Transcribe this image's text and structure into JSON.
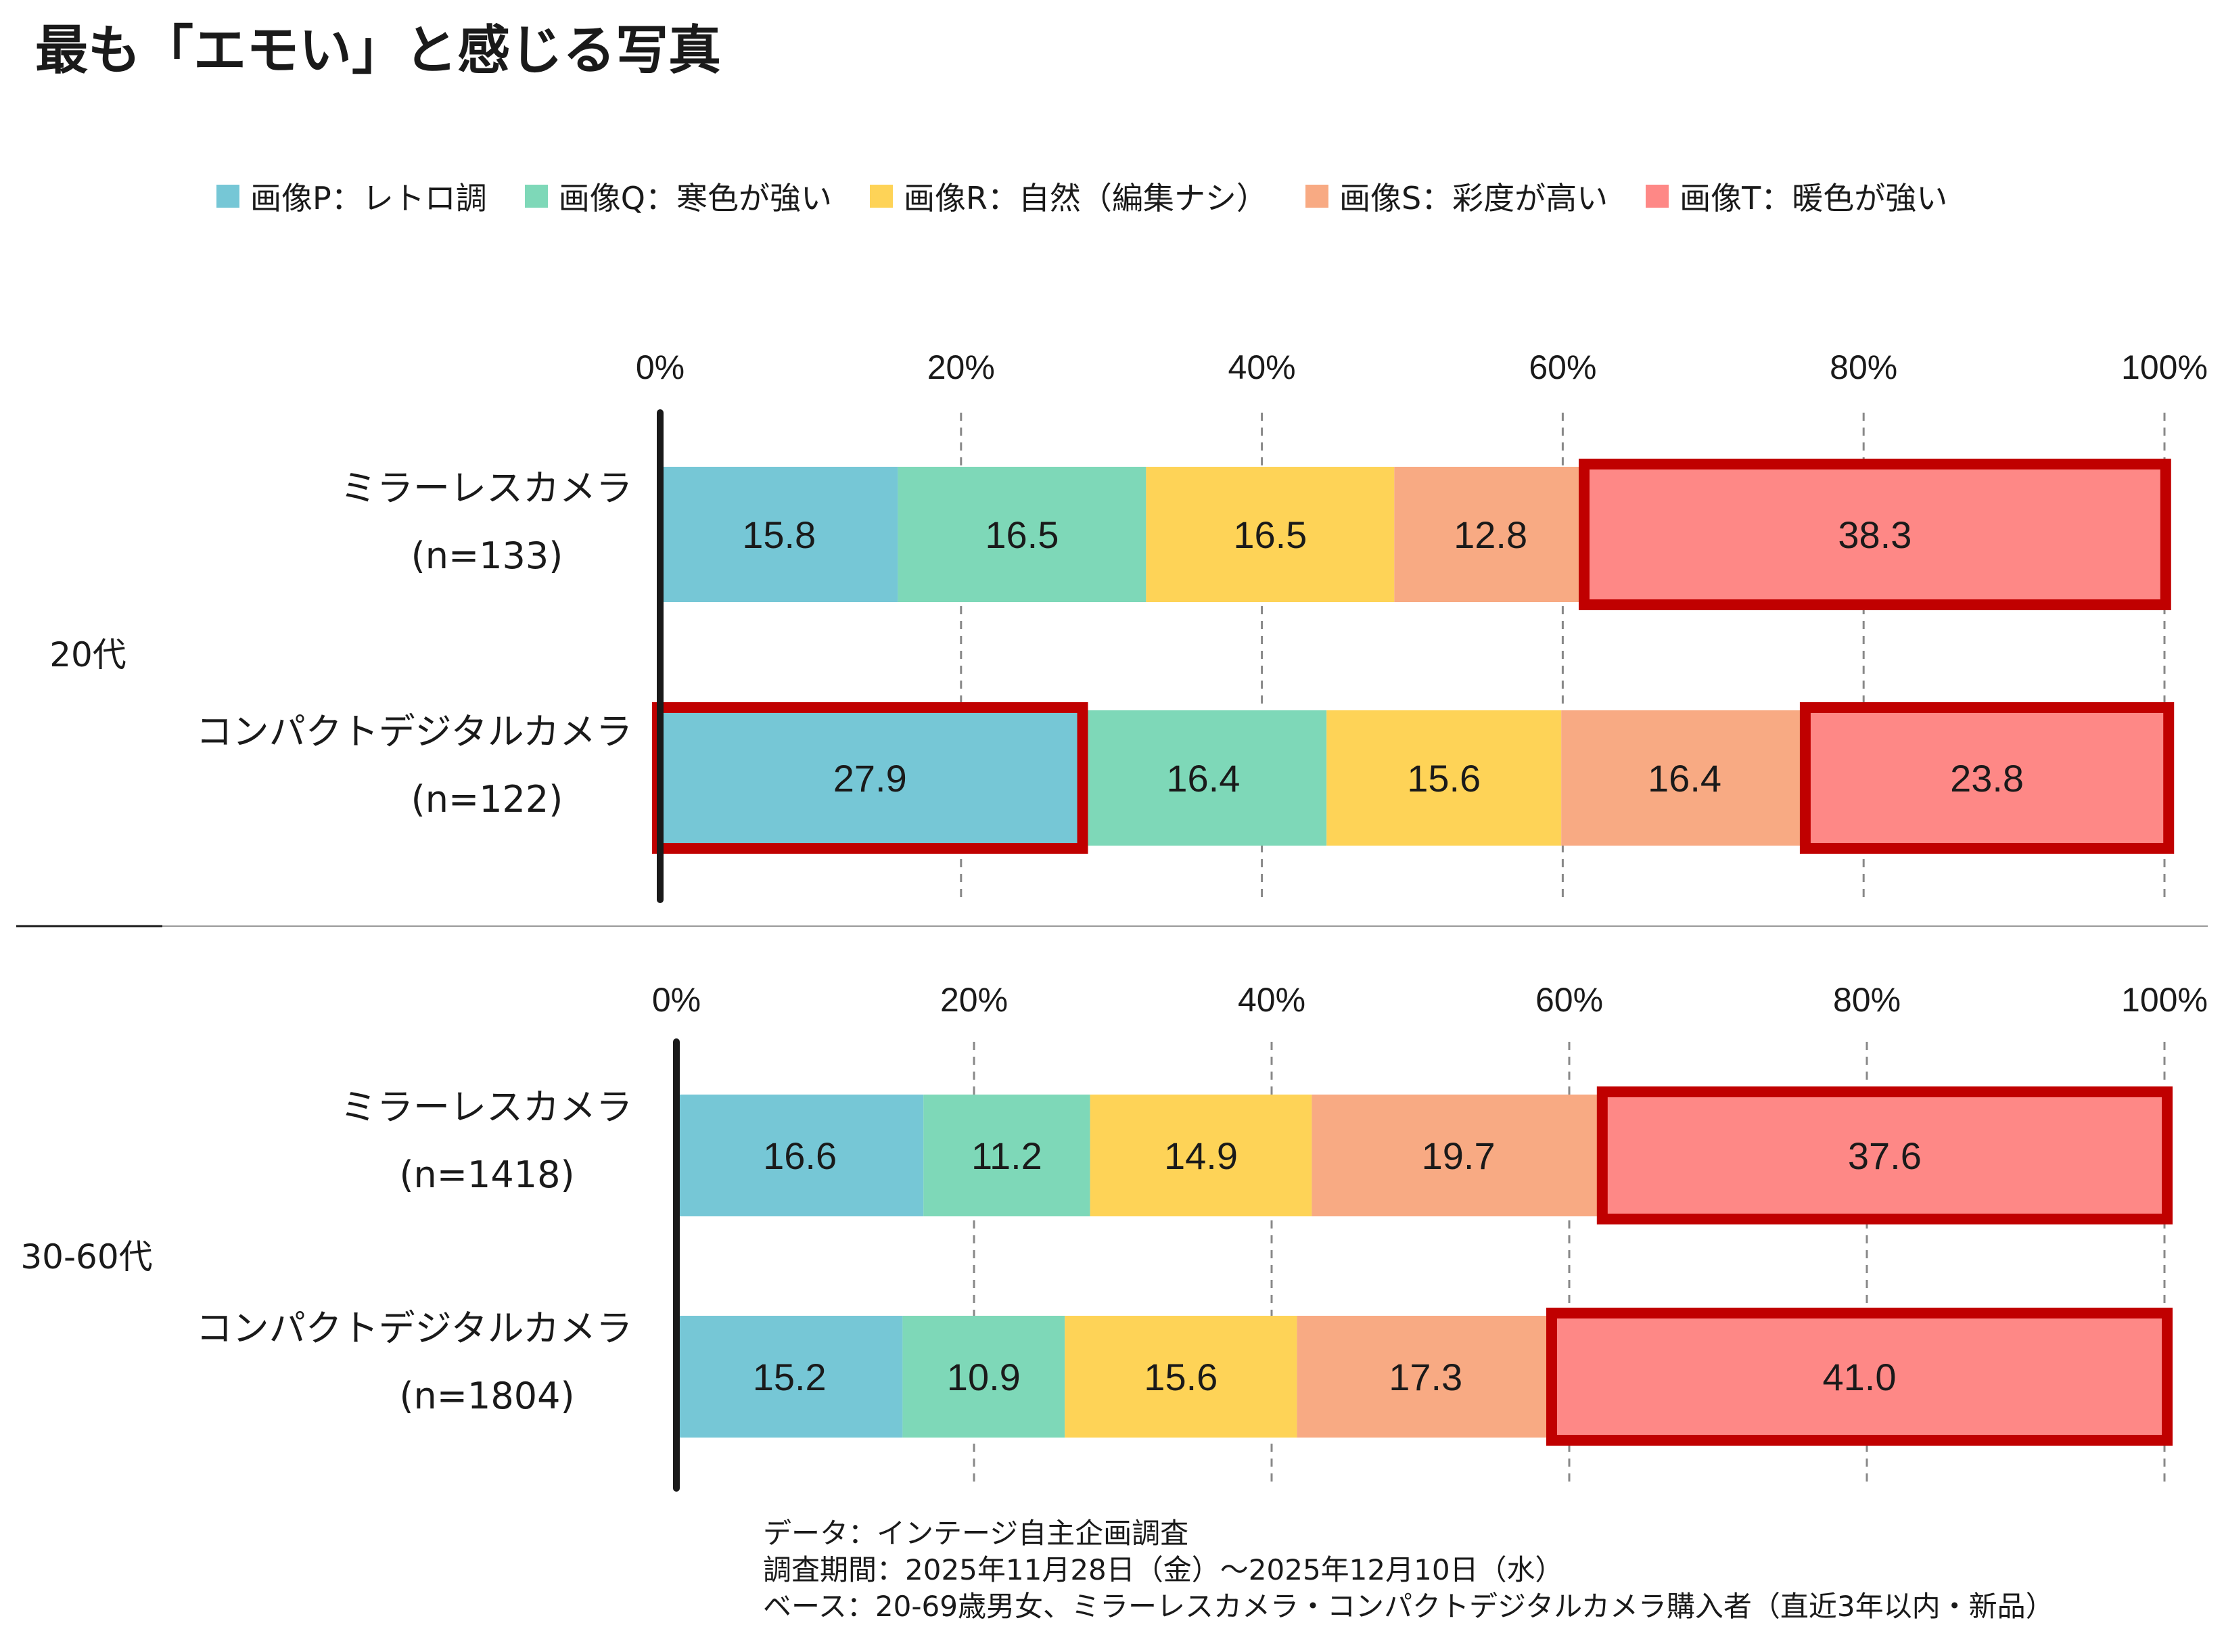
{
  "title": "最も「エモい」と感じる写真",
  "legend": [
    {
      "label": "画像P：レトロ調",
      "color": "#76C7D6"
    },
    {
      "label": "画像Q：寒色が強い",
      "color": "#7ED8B8"
    },
    {
      "label": "画像R：自然（編集ナシ）",
      "color": "#FED357"
    },
    {
      "label": "画像S：彩度が高い",
      "color": "#F8AA83"
    },
    {
      "label": "画像T：暖色が強い",
      "color": "#FE8886"
    }
  ],
  "chart_data": {
    "type": "bar",
    "orientation": "horizontal",
    "stacked": true,
    "xlim": [
      0,
      100
    ],
    "ticks": [
      "0%",
      "20%",
      "40%",
      "60%",
      "80%",
      "100%"
    ],
    "highlight_color": "#C00000",
    "groups": [
      {
        "name": "20代",
        "rows": [
          {
            "label": "ミラーレスカメラ",
            "n": "(n=133)",
            "values": [
              15.8,
              16.5,
              16.5,
              12.8,
              38.3
            ],
            "highlight": [
              4
            ]
          },
          {
            "label": "コンパクトデジタルカメラ",
            "n": "(n=122)",
            "values": [
              27.9,
              16.4,
              15.6,
              16.4,
              23.8
            ],
            "highlight": [
              0,
              4
            ]
          }
        ]
      },
      {
        "name": "30-60代",
        "rows": [
          {
            "label": "ミラーレスカメラ",
            "n": "(n=1418)",
            "values": [
              16.6,
              11.2,
              14.9,
              19.7,
              37.6
            ],
            "highlight": [
              4
            ]
          },
          {
            "label": "コンパクトデジタルカメラ",
            "n": "(n=1804)",
            "values": [
              15.2,
              10.9,
              15.6,
              17.3,
              41.0
            ],
            "highlight": [
              4
            ]
          }
        ]
      }
    ]
  },
  "footnotes": [
    "データ：インテージ自主企画調査",
    "調査期間：2025年11月28日（金）～2025年12月10日（水）",
    "ベース：20-69歳男女、ミラーレスカメラ・コンパクトデジタルカメラ購入者（直近3年以内・新品）"
  ]
}
